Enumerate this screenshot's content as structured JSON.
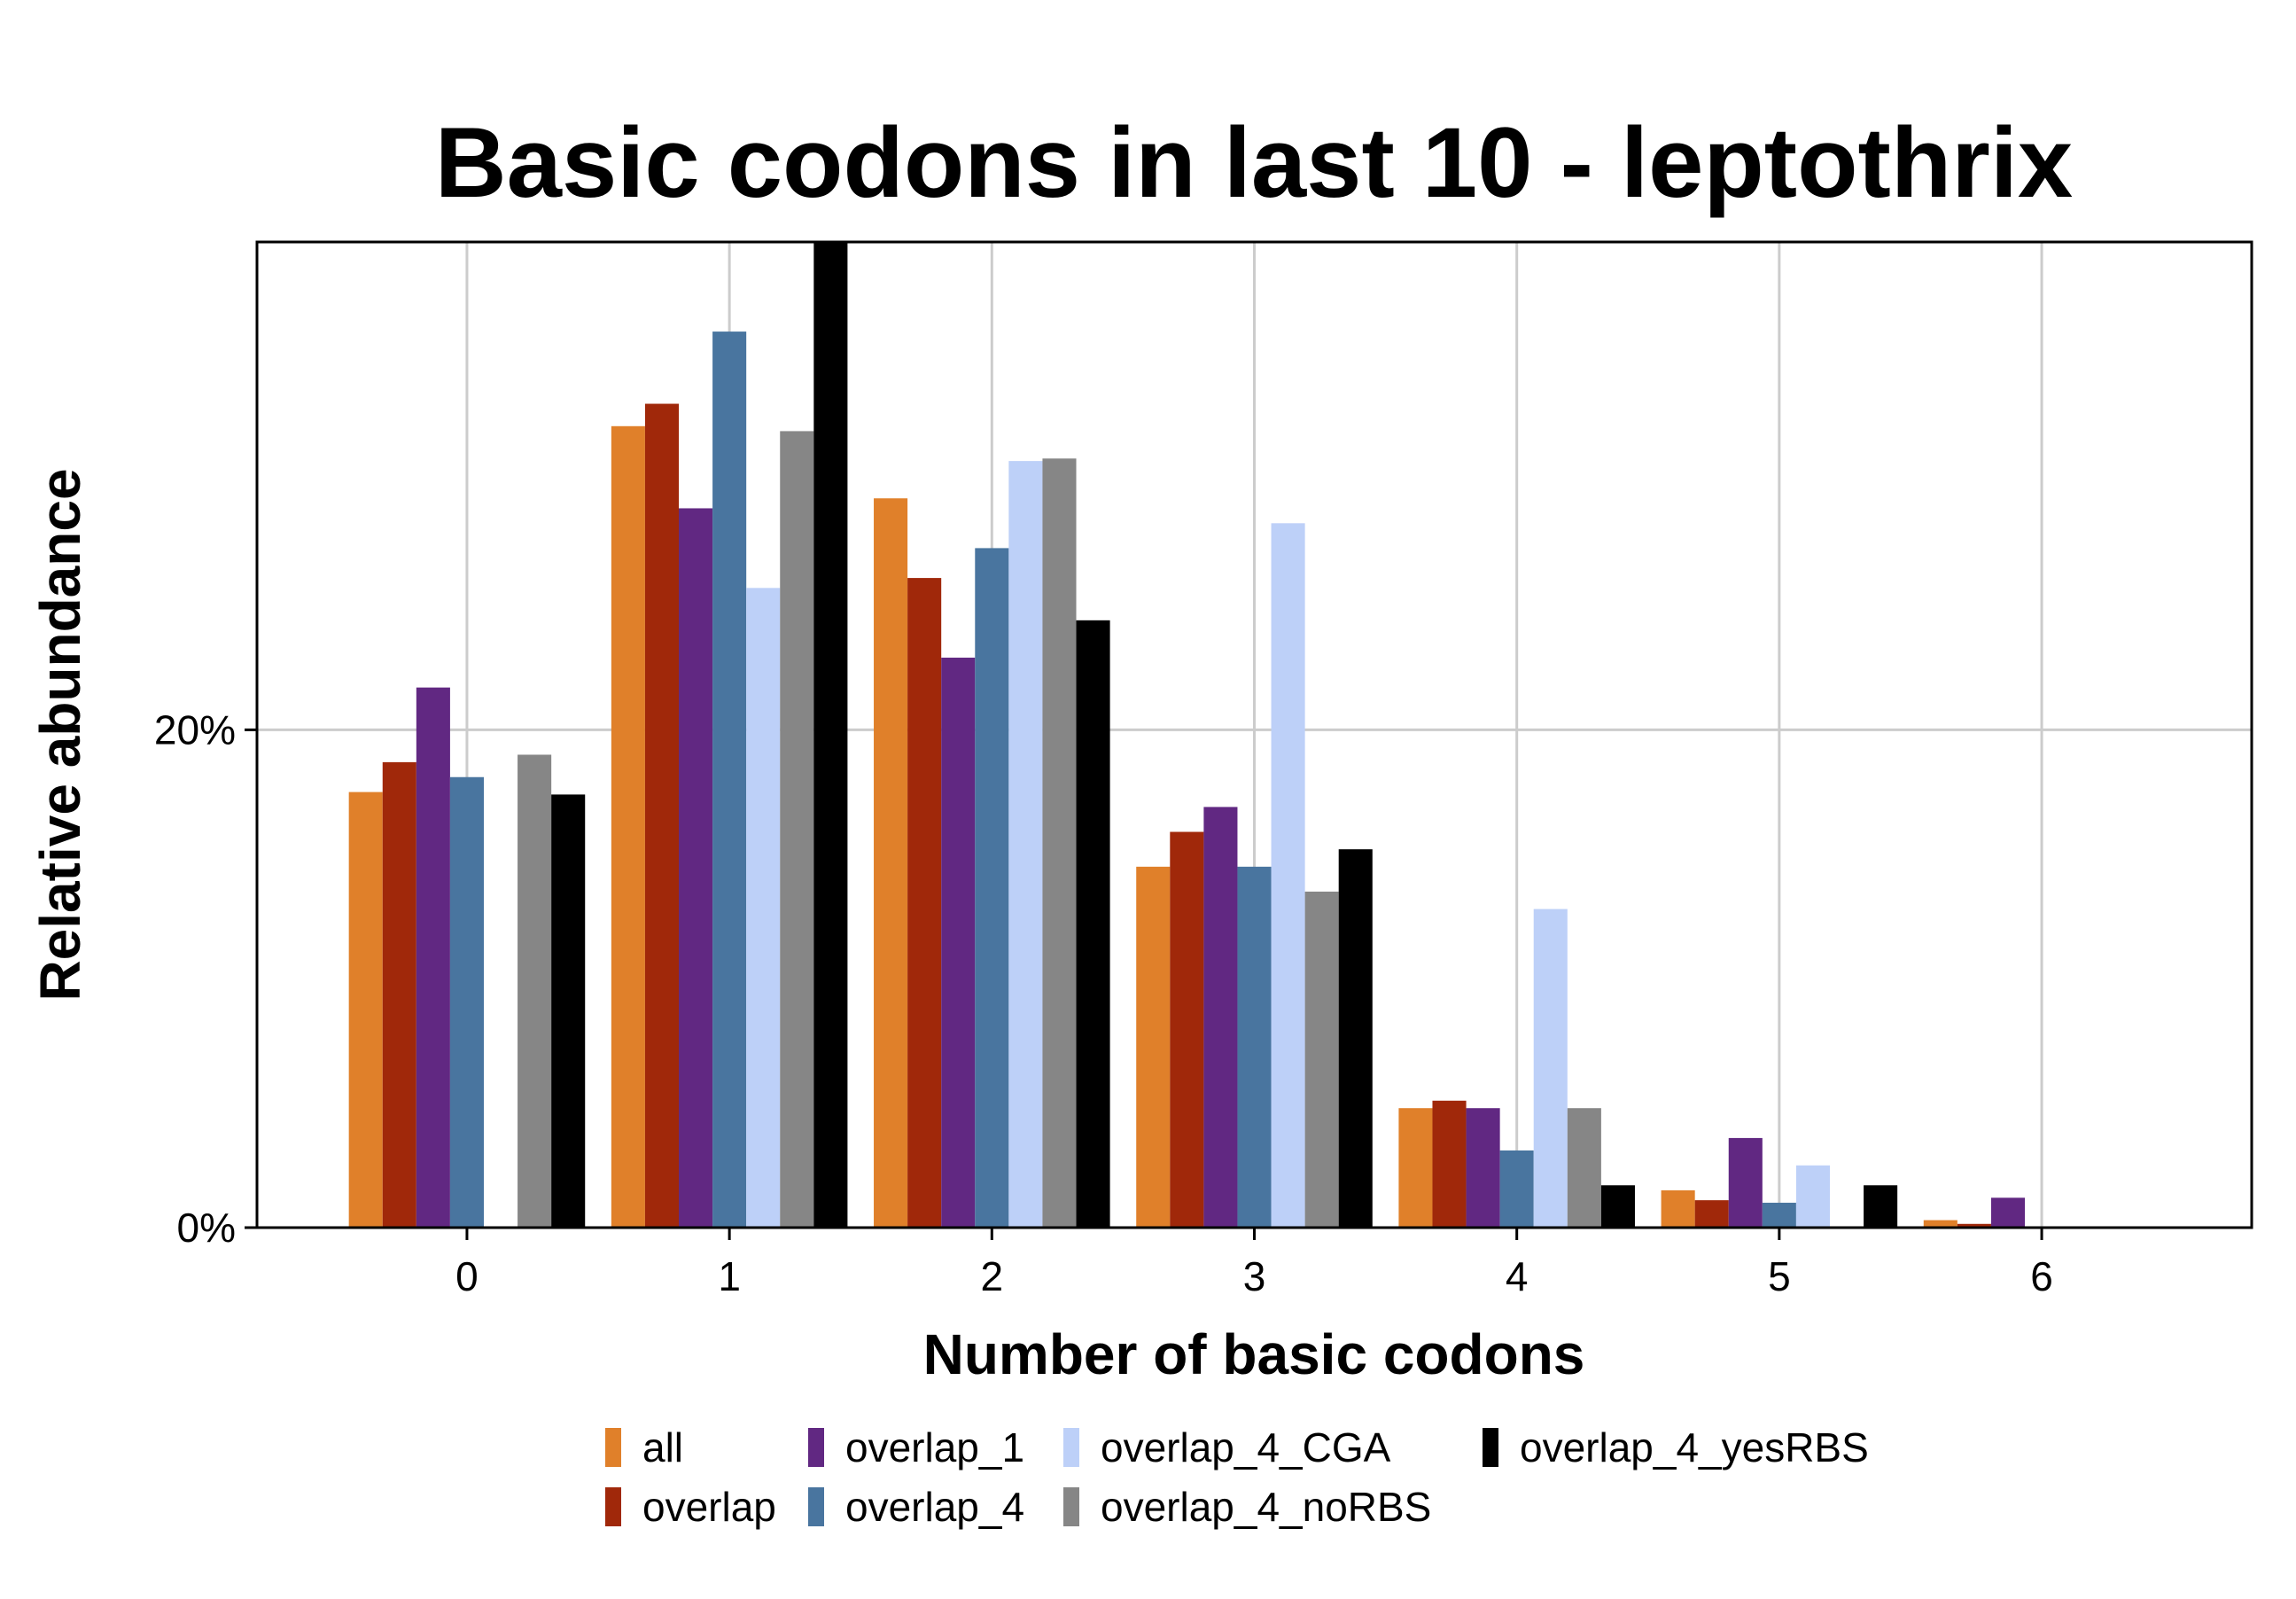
{
  "chart_data": {
    "type": "bar",
    "title": "Basic codons in last 10 - leptothrix",
    "xlabel": "Number of basic codons",
    "ylabel": "Relative abundance",
    "categories": [
      "0",
      "1",
      "2",
      "3",
      "4",
      "5",
      "6"
    ],
    "y_ticks": [
      {
        "value": 0,
        "label": "0%"
      },
      {
        "value": 20,
        "label": "20%"
      }
    ],
    "ylim": [
      0,
      39.6
    ],
    "xlim": [
      -0.8,
      6.8
    ],
    "grid": true,
    "legend_position": "bottom",
    "series": [
      {
        "name": "all",
        "color": "#E0802A",
        "values": [
          17.5,
          32.2,
          29.3,
          14.5,
          4.8,
          1.5,
          0.3
        ]
      },
      {
        "name": "overlap",
        "color": "#A0280A",
        "values": [
          18.7,
          33.1,
          26.1,
          15.9,
          5.1,
          1.1,
          0.15
        ]
      },
      {
        "name": "overlap_1",
        "color": "#612882",
        "values": [
          21.7,
          28.9,
          22.9,
          16.9,
          4.8,
          3.6,
          1.2
        ]
      },
      {
        "name": "overlap_4",
        "color": "#49759F",
        "values": [
          18.1,
          36.0,
          27.3,
          14.5,
          3.1,
          1.0,
          0
        ]
      },
      {
        "name": "overlap_4_CGA",
        "color": "#BDD0F8",
        "values": [
          0,
          25.7,
          30.8,
          28.3,
          12.8,
          2.5,
          0
        ]
      },
      {
        "name": "overlap_4_noRBS",
        "color": "#868686",
        "values": [
          19.0,
          32.0,
          30.9,
          13.5,
          4.8,
          0,
          0
        ]
      },
      {
        "name": "overlap_4_yesRBS",
        "color": "#000000",
        "values": [
          17.4,
          39.6,
          24.4,
          15.2,
          1.7,
          1.7,
          0
        ]
      }
    ]
  }
}
